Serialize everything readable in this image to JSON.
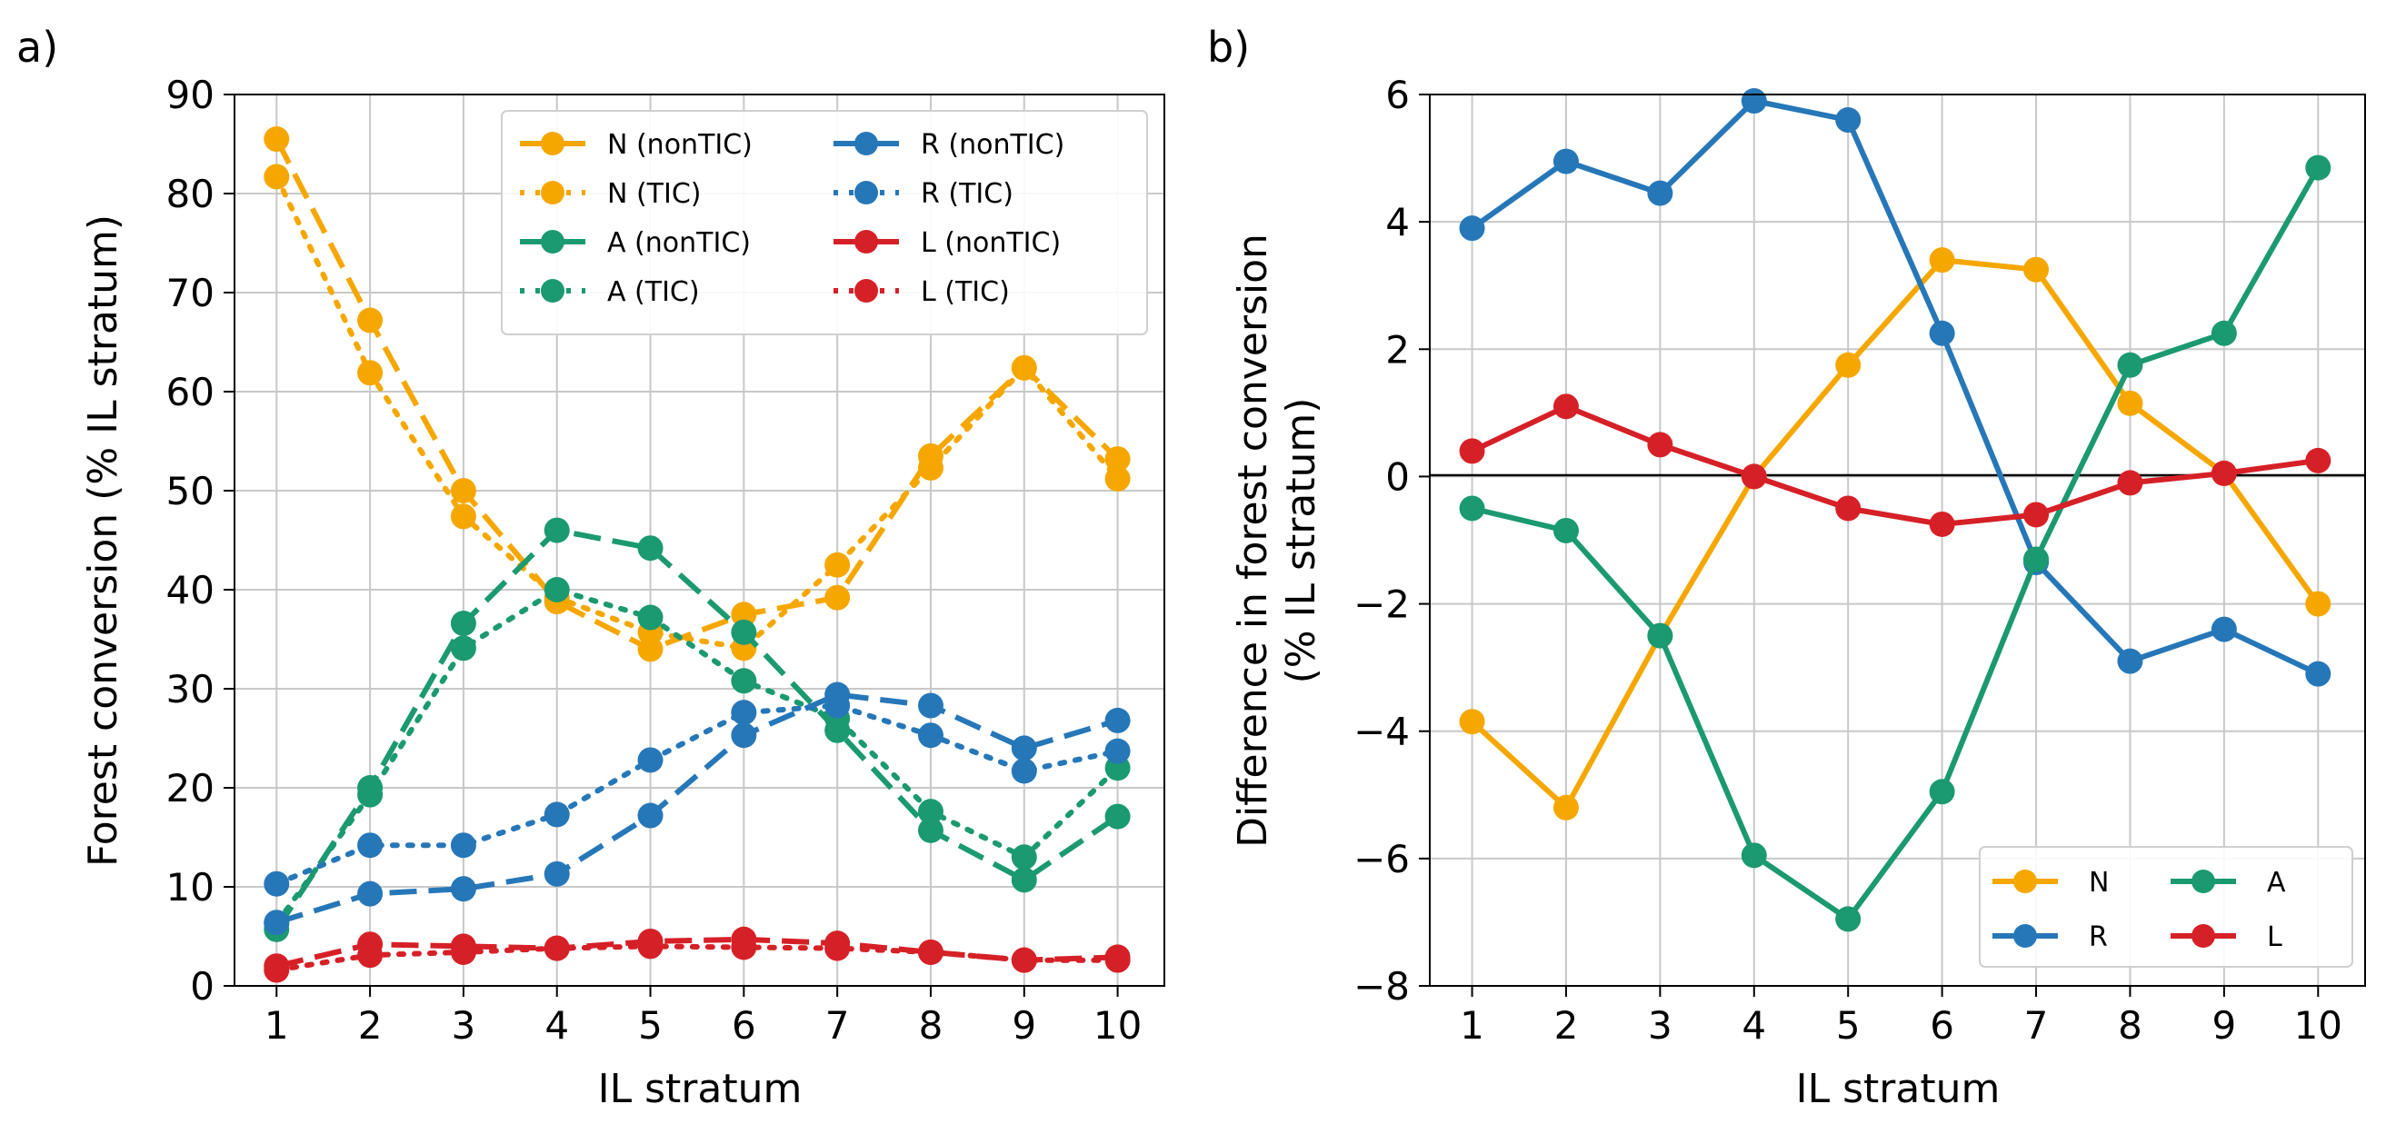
{
  "chart_data": [
    {
      "panel_label": "a)",
      "type": "line",
      "xlabel": "IL stratum",
      "ylabel": "Forest conversion (% IL stratum)",
      "x": [
        1,
        2,
        3,
        4,
        5,
        6,
        7,
        8,
        9,
        10
      ],
      "xticks": [
        "1",
        "2",
        "3",
        "4",
        "5",
        "6",
        "7",
        "8",
        "9",
        "10"
      ],
      "xlim": [
        0.55,
        10.5
      ],
      "ylim": [
        0,
        90
      ],
      "yticks": [
        "0",
        "10",
        "20",
        "30",
        "40",
        "50",
        "60",
        "70",
        "80",
        "90"
      ],
      "grid": true,
      "legend_position": "top-right",
      "series": [
        {
          "name": "N (nonTIC)",
          "color": "#f5a700",
          "style": "dashed",
          "values": [
            85.5,
            67.2,
            50.0,
            38.8,
            34.0,
            37.5,
            39.2,
            53.5,
            62.4,
            53.2
          ]
        },
        {
          "name": "N (TIC)",
          "color": "#f5a700",
          "style": "dotted",
          "values": [
            81.7,
            61.9,
            47.4,
            39.2,
            35.7,
            34.1,
            42.5,
            52.3,
            62.4,
            51.2
          ]
        },
        {
          "name": "A (nonTIC)",
          "color": "#1b9970",
          "style": "dashed",
          "values": [
            5.7,
            20.0,
            36.6,
            46.0,
            44.2,
            35.7,
            25.8,
            15.7,
            10.7,
            17.1
          ]
        },
        {
          "name": "A (TIC)",
          "color": "#1b9970",
          "style": "dotted",
          "values": [
            6.3,
            19.3,
            34.1,
            40.0,
            37.2,
            30.8,
            27.0,
            17.6,
            13.0,
            22.0
          ]
        },
        {
          "name": "R (nonTIC)",
          "color": "#2677b8",
          "style": "dashed",
          "values": [
            6.4,
            9.3,
            9.8,
            11.3,
            17.2,
            25.3,
            29.4,
            28.3,
            24.0,
            26.8
          ]
        },
        {
          "name": "R (TIC)",
          "color": "#2677b8",
          "style": "dotted",
          "values": [
            10.3,
            14.2,
            14.2,
            17.3,
            22.8,
            27.6,
            28.3,
            25.3,
            21.7,
            23.7
          ]
        },
        {
          "name": "L (nonTIC)",
          "color": "#d62027",
          "style": "dashed",
          "values": [
            2.0,
            4.2,
            4.0,
            3.8,
            4.5,
            4.7,
            4.3,
            3.4,
            2.6,
            2.9
          ]
        },
        {
          "name": "L (TIC)",
          "color": "#d62027",
          "style": "dotted",
          "values": [
            1.6,
            3.1,
            3.4,
            3.8,
            4.0,
            3.9,
            3.8,
            3.4,
            2.6,
            2.6
          ]
        }
      ]
    },
    {
      "panel_label": "b)",
      "type": "line",
      "xlabel": "IL stratum",
      "ylabel_line1": "Difference in forest conversion",
      "ylabel_line2": "(% IL stratum)",
      "x": [
        1,
        2,
        3,
        4,
        5,
        6,
        7,
        8,
        9,
        10
      ],
      "xticks": [
        "1",
        "2",
        "3",
        "4",
        "5",
        "6",
        "7",
        "8",
        "9",
        "10"
      ],
      "xlim": [
        0.55,
        10.5
      ],
      "ylim": [
        -8,
        6
      ],
      "yticks": [
        "−8",
        "−6",
        "−4",
        "−2",
        "0",
        "2",
        "4",
        "6"
      ],
      "grid": true,
      "zero_line": true,
      "legend_position": "bottom-right",
      "series": [
        {
          "name": "N",
          "color": "#f5a700",
          "style": "solid",
          "values": [
            -3.85,
            -5.2,
            -2.5,
            0.0,
            1.75,
            3.4,
            3.25,
            1.15,
            0.05,
            -2.0
          ]
        },
        {
          "name": "R",
          "color": "#2677b8",
          "style": "solid",
          "values": [
            3.9,
            4.95,
            4.45,
            5.9,
            5.6,
            2.25,
            -1.35,
            -2.9,
            -2.4,
            -3.1
          ]
        },
        {
          "name": "A",
          "color": "#1b9970",
          "style": "solid",
          "values": [
            -0.5,
            -0.85,
            -2.5,
            -5.95,
            -6.95,
            -4.95,
            -1.3,
            1.75,
            2.25,
            4.85
          ]
        },
        {
          "name": "L",
          "color": "#d62027",
          "style": "solid",
          "values": [
            0.4,
            1.1,
            0.5,
            0.0,
            -0.5,
            -0.75,
            -0.6,
            -0.1,
            0.05,
            0.25
          ]
        }
      ]
    }
  ]
}
